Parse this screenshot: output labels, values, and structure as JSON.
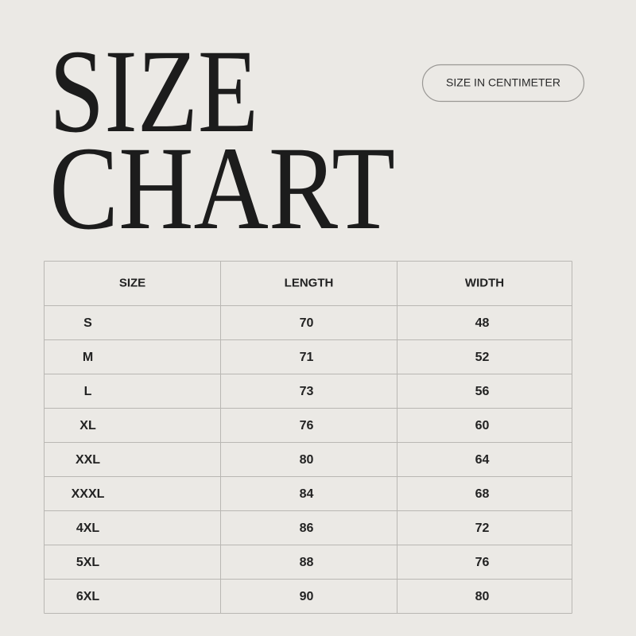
{
  "title": {
    "line1": "SIZE",
    "line2": "CHART"
  },
  "badge": "SIZE IN CENTIMETER",
  "table": {
    "header": [
      "SIZE",
      "LENGTH",
      "WIDTH"
    ],
    "rows": [
      [
        "S",
        70,
        48
      ],
      [
        "M",
        71,
        52
      ],
      [
        "L",
        73,
        56
      ],
      [
        "XL",
        76,
        60
      ],
      [
        "XXL",
        80,
        64
      ],
      [
        "XXXL",
        84,
        68
      ],
      [
        "4XL",
        86,
        72
      ],
      [
        "5XL",
        88,
        76
      ],
      [
        "6XL",
        90,
        80
      ]
    ]
  }
}
